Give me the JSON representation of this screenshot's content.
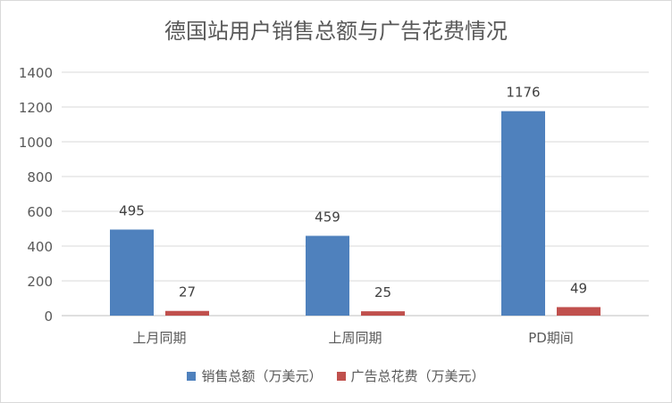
{
  "chart_data": {
    "type": "bar",
    "title": "德国站用户销售总额与广告花费情况",
    "categories": [
      "上月同期",
      "上周同期",
      "PD期间"
    ],
    "series": [
      {
        "name": "销售总额（万美元）",
        "values": [
          495,
          459,
          1176
        ],
        "color": "#4f81bd"
      },
      {
        "name": "广告总花费（万美元）",
        "values": [
          27,
          25,
          49
        ],
        "color": "#c0504d"
      }
    ],
    "ylim": [
      0,
      1400
    ],
    "yticks": [
      0,
      200,
      400,
      600,
      800,
      1000,
      1200,
      1400
    ],
    "grid": true,
    "legend": "bottom",
    "data_labels": true
  }
}
